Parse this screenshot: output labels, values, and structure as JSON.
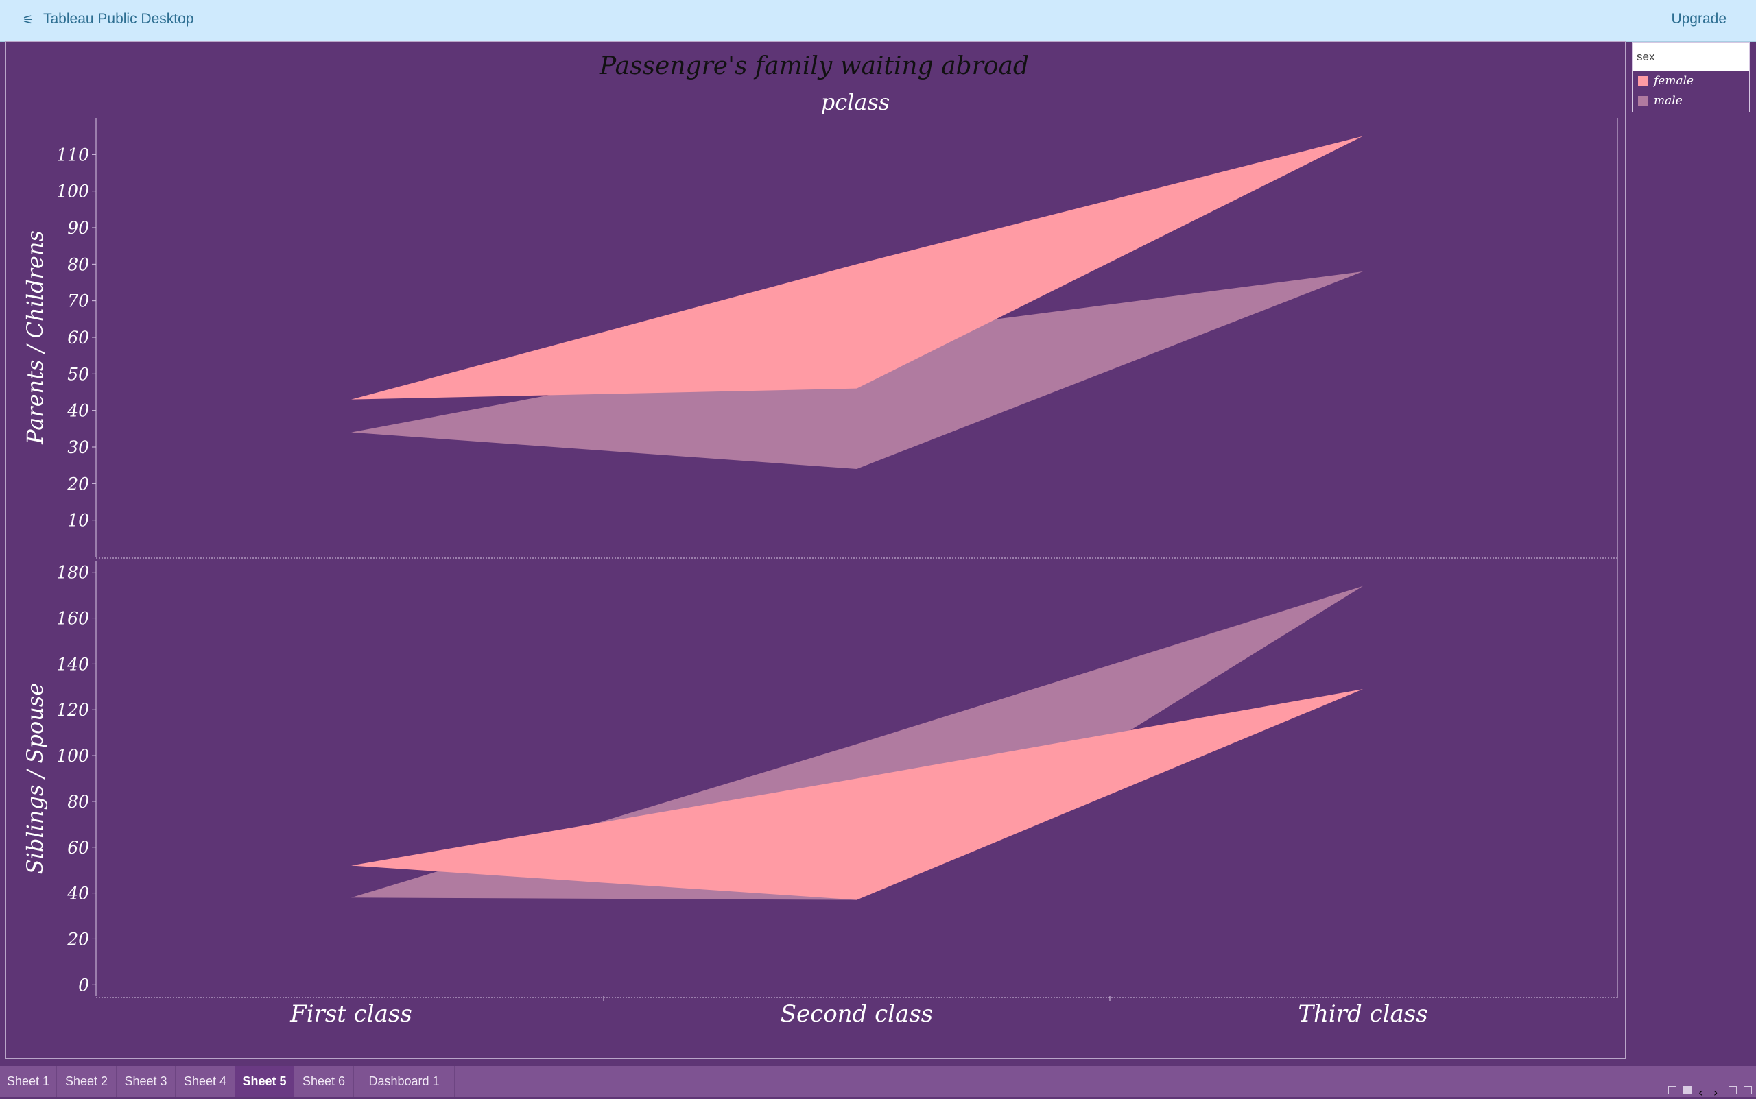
{
  "app": {
    "icon": "tableau-logo-icon",
    "title": "Tableau Public Desktop",
    "upgrade_label": "Upgrade"
  },
  "legend": {
    "title": "sex",
    "items": [
      {
        "label": "female",
        "color": "#ff9ba4"
      },
      {
        "label": "male",
        "color": "#b07ba0"
      }
    ]
  },
  "tabs": [
    {
      "label": "Sheet 1"
    },
    {
      "label": "Sheet 2"
    },
    {
      "label": "Sheet 3"
    },
    {
      "label": "Sheet 4"
    },
    {
      "label": "Sheet 5",
      "active": true
    },
    {
      "label": "Sheet 6"
    },
    {
      "label": "Dashboard 1"
    }
  ],
  "chart_data": {
    "type": "area",
    "title": "Passengre's family waiting abroad",
    "column_header": "pclass",
    "categories": [
      "First class",
      "Second class",
      "Third class"
    ],
    "panels": [
      {
        "ylabel": "Parents / Childrens",
        "ylim": [
          0,
          120
        ],
        "ticks": [
          10,
          20,
          30,
          40,
          50,
          60,
          70,
          80,
          90,
          100,
          110
        ],
        "series": [
          {
            "name": "male",
            "color": "#b07ba0",
            "low": [
              34,
              24,
              78
            ],
            "high": [
              34,
              60,
              78
            ]
          },
          {
            "name": "female",
            "color": "#ff9ba4",
            "low": [
              43,
              46,
              115
            ],
            "high": [
              43,
              80,
              115
            ]
          }
        ]
      },
      {
        "ylabel": "Siblings / Spouse",
        "ylim": [
          -5,
          185
        ],
        "ticks": [
          0,
          20,
          40,
          60,
          80,
          100,
          120,
          140,
          160,
          180
        ],
        "series": [
          {
            "name": "male",
            "color": "#b07ba0",
            "low": [
              38,
              37,
              174
            ],
            "high": [
              38,
              105,
              174
            ]
          },
          {
            "name": "female",
            "color": "#ff9ba4",
            "low": [
              52,
              37,
              129
            ],
            "high": [
              52,
              90,
              129
            ]
          }
        ]
      }
    ],
    "grid": false,
    "legend_position": "top-right"
  }
}
